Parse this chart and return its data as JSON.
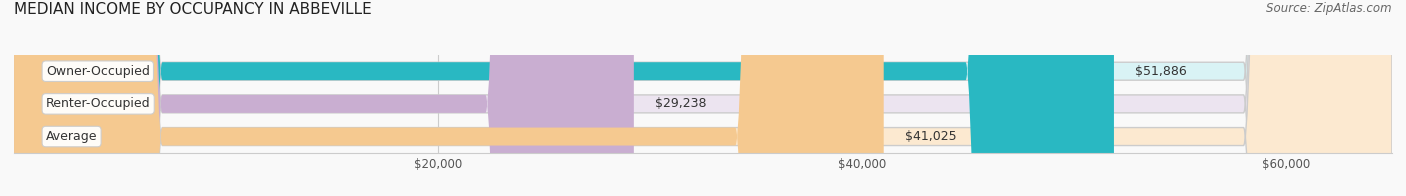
{
  "title": "MEDIAN INCOME BY OCCUPANCY IN ABBEVILLE",
  "source": "Source: ZipAtlas.com",
  "categories": [
    "Owner-Occupied",
    "Renter-Occupied",
    "Average"
  ],
  "values": [
    51886,
    29238,
    41025
  ],
  "labels": [
    "$51,886",
    "$29,238",
    "$41,025"
  ],
  "bar_colors": [
    "#29b8c2",
    "#c9aed1",
    "#f5c990"
  ],
  "bar_bg_colors": [
    "#d9f3f5",
    "#ece4f0",
    "#fce9d0"
  ],
  "xmax": 65000,
  "xticks": [
    20000,
    40000,
    60000
  ],
  "xticklabels": [
    "$20,000",
    "$40,000",
    "$60,000"
  ],
  "title_fontsize": 11,
  "source_fontsize": 8.5,
  "label_fontsize": 9,
  "bar_height": 0.55,
  "background_color": "#f9f9f9"
}
